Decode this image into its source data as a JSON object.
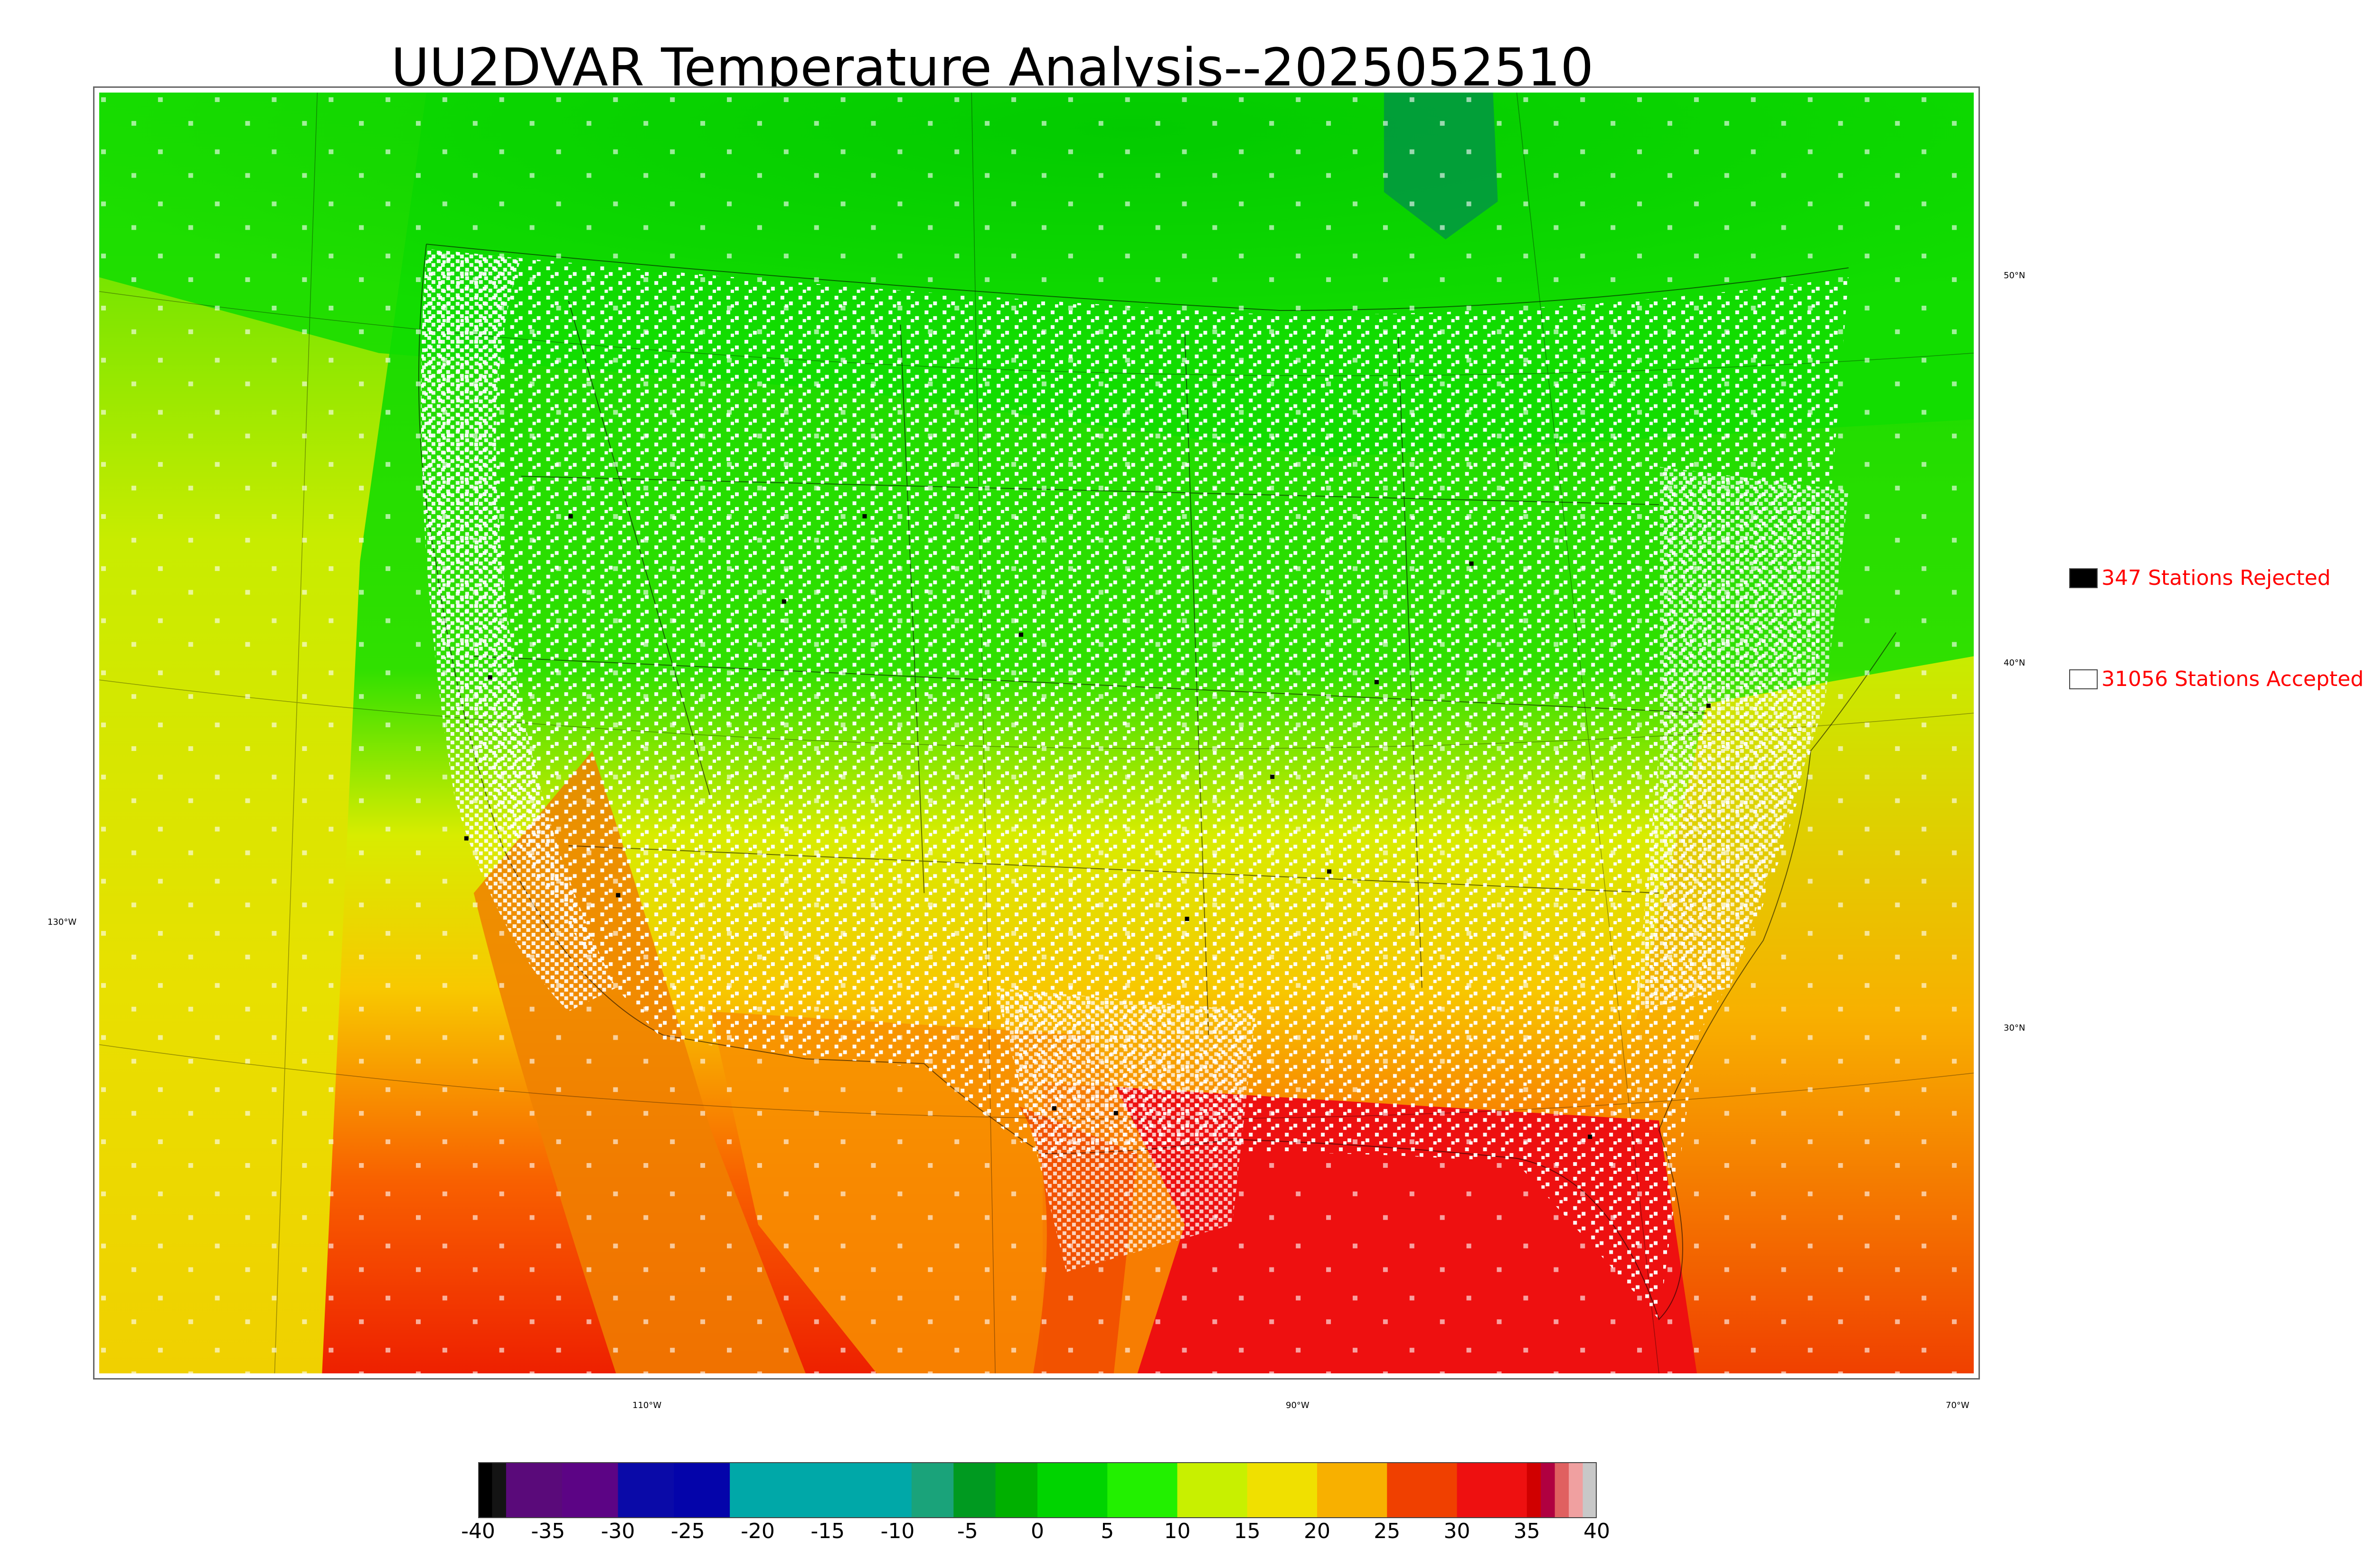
{
  "title": "UU2DVAR Temperature Analysis--2025052510",
  "map": {
    "latitude_labels": [
      "50°N",
      "40°N",
      "30°N"
    ],
    "longitude_labels": [
      "130°W",
      "110°W",
      "90°W",
      "70°W"
    ],
    "field": "2 m temperature analysis (color shaded)"
  },
  "legend": {
    "rejected": {
      "label": "347 Stations Rejected",
      "swatch_color": "#000000"
    },
    "accepted": {
      "label": "31056 Stations Accepted",
      "swatch_color": "#ffffff"
    }
  },
  "colorbar": {
    "ticks": [
      "-40",
      "-35",
      "-30",
      "-25",
      "-20",
      "-15",
      "-10",
      "-5",
      "0",
      "5",
      "10",
      "15",
      "20",
      "25",
      "30",
      "35",
      "40"
    ],
    "min": -40,
    "max": 40,
    "colors": [
      {
        "from": -40,
        "to": -39,
        "color": "#000000"
      },
      {
        "from": -39,
        "to": -38,
        "color": "#141414"
      },
      {
        "from": -38,
        "to": -34,
        "color": "#5a0a7a"
      },
      {
        "from": -34,
        "to": -30,
        "color": "#5c0485"
      },
      {
        "from": -30,
        "to": -26,
        "color": "#0a0aa8"
      },
      {
        "from": -26,
        "to": -22,
        "color": "#0404aa"
      },
      {
        "from": -22,
        "to": -16,
        "color": "#00a8a8"
      },
      {
        "from": -16,
        "to": -9,
        "color": "#00a8a8"
      },
      {
        "from": -9,
        "to": -6,
        "color": "#1aa37a"
      },
      {
        "from": -6,
        "to": -3,
        "color": "#009a20"
      },
      {
        "from": -3,
        "to": 0,
        "color": "#00b000"
      },
      {
        "from": 0,
        "to": 5,
        "color": "#00d400"
      },
      {
        "from": 5,
        "to": 10,
        "color": "#22f000"
      },
      {
        "from": 10,
        "to": 15,
        "color": "#c8f000"
      },
      {
        "from": 15,
        "to": 20,
        "color": "#f0e000"
      },
      {
        "from": 20,
        "to": 25,
        "color": "#f8b000"
      },
      {
        "from": 25,
        "to": 30,
        "color": "#f04000"
      },
      {
        "from": 30,
        "to": 35,
        "color": "#ee1010"
      },
      {
        "from": 35,
        "to": 36,
        "color": "#d00000"
      },
      {
        "from": 36,
        "to": 37,
        "color": "#b00040"
      },
      {
        "from": 37,
        "to": 38,
        "color": "#e06060"
      },
      {
        "from": 38,
        "to": 39,
        "color": "#f0a0a0"
      },
      {
        "from": 39,
        "to": 40,
        "color": "#c8c8c8"
      }
    ]
  }
}
